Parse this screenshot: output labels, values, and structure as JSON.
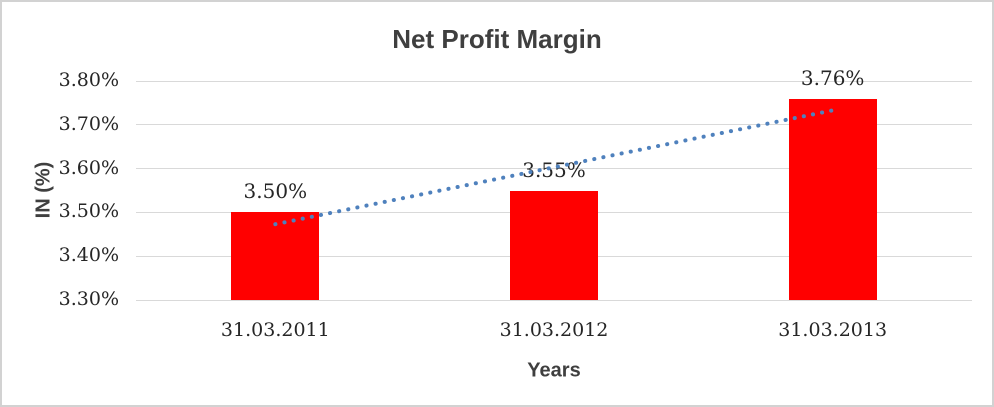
{
  "chart_data": {
    "type": "bar",
    "title": "Net Profit Margin",
    "xlabel": "Years",
    "ylabel": "IN (%)",
    "categories": [
      "31.03.2011",
      "31.03.2012",
      "31.03.2013"
    ],
    "values": [
      3.5,
      3.55,
      3.76
    ],
    "data_labels": [
      "3.50%",
      "3.55%",
      "3.76%"
    ],
    "ticks": [
      3.3,
      3.4,
      3.5,
      3.6,
      3.7,
      3.8
    ],
    "tick_labels": [
      "3.30%",
      "3.40%",
      "3.50%",
      "3.60%",
      "3.70%",
      "3.80%"
    ],
    "ylim": [
      3.3,
      3.8
    ],
    "grid": true,
    "legend": "none",
    "colors": {
      "bar": "#ff0000",
      "gridline": "#d9d9d9",
      "trendline": "#4f81bd",
      "title_text": "#3f3f3f",
      "tick_text": "#262626"
    },
    "trendline": {
      "type": "linear",
      "style": "dotted",
      "start_value": 3.473,
      "end_value": 3.733
    }
  }
}
